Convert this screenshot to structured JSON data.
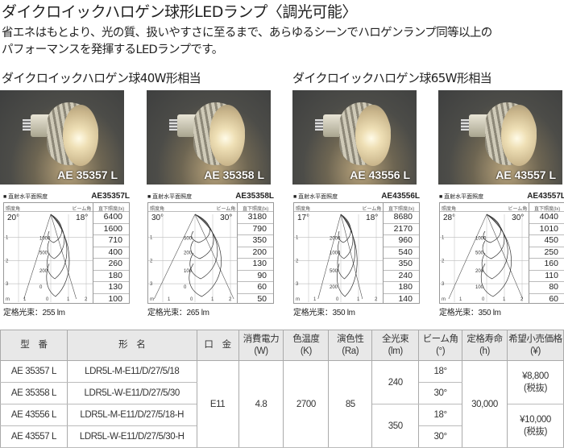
{
  "title": "ダイクロイックハロゲン球形LEDランプ〈調光可能〉",
  "description": [
    "省エネはもとより、光の質、扱いやすさに至るまで、あらゆるシーンでハロゲンランプ同等以上の",
    "パフォーマンスを発揮するLEDランプです。"
  ],
  "sections": [
    "ダイクロイックハロゲン球40W形相当",
    "ダイクロイックハロゲン球65W形相当"
  ],
  "photos": [
    "AE 35357 L",
    "AE 35358 L",
    "AE 43556 L",
    "AE 43557 L"
  ],
  "chart_common": {
    "heading": "■ 直射水平面照度",
    "spread_label": "照度角",
    "beam_label": "ビーム角",
    "lux_label": "直下照度(lx)",
    "y_ticks": [
      "1",
      "2",
      "3",
      "m"
    ],
    "x_ticks": [
      "1",
      "0",
      "1",
      "2"
    ]
  },
  "charts": [
    {
      "model": "AE35357L",
      "spread": "20°",
      "beam": "18°",
      "lux": [
        "6400",
        "1600",
        "710",
        "400",
        "260",
        "180",
        "130",
        "100"
      ],
      "contours": [
        "1000",
        "500",
        "200",
        "0"
      ],
      "caption": "定格光束：255 lm"
    },
    {
      "model": "AE35358L",
      "spread": "30°",
      "beam": "30°",
      "lux": [
        "3180",
        "790",
        "350",
        "200",
        "130",
        "90",
        "60",
        "50"
      ],
      "contours": [
        "500",
        "200",
        "100",
        "0"
      ],
      "caption": "定格光束：265 lm"
    },
    {
      "model": "AE43556L",
      "spread": "17°",
      "beam": "18°",
      "lux": [
        "8680",
        "2170",
        "960",
        "540",
        "350",
        "240",
        "180",
        "140"
      ],
      "contours": [
        "2000",
        "1000",
        "500",
        "200"
      ],
      "caption": "定格光束：350 lm"
    },
    {
      "model": "AE43557L",
      "spread": "28°",
      "beam": "30°",
      "lux": [
        "4040",
        "1010",
        "450",
        "250",
        "160",
        "110",
        "80",
        "60"
      ],
      "contours": [
        "1000",
        "500",
        "200",
        "100"
      ],
      "caption": "定格光束：350 lm"
    }
  ],
  "table": {
    "headers": [
      "型　番",
      "形　名",
      "口　金",
      "消費電力\n(W)",
      "色温度\n(K)",
      "演色性\n(Ra)",
      "全光束\n(lm)",
      "ビーム角\n(°)",
      "定格寿命\n(h)",
      "希望小売価格\n(¥)"
    ],
    "models": [
      "AE 35357 L",
      "AE 35358 L",
      "AE 43556 L",
      "AE 43557 L"
    ],
    "names": [
      "LDR5L-M-E11/D/27/5/18",
      "LDR5L-W-E11/D/27/5/30",
      "LDR5L-M-E11/D/27/5/18-H",
      "LDR5L-W-E11/D/27/5/30-H"
    ],
    "base": "E11",
    "power": "4.8",
    "color_temp": "2700",
    "ra": "85",
    "lumens": [
      "240",
      "350"
    ],
    "beams": [
      "18°",
      "30°",
      "18°",
      "30°"
    ],
    "life": "30,000",
    "prices": [
      "¥8,800\n(税抜)",
      "¥10,000\n(税抜)"
    ]
  }
}
